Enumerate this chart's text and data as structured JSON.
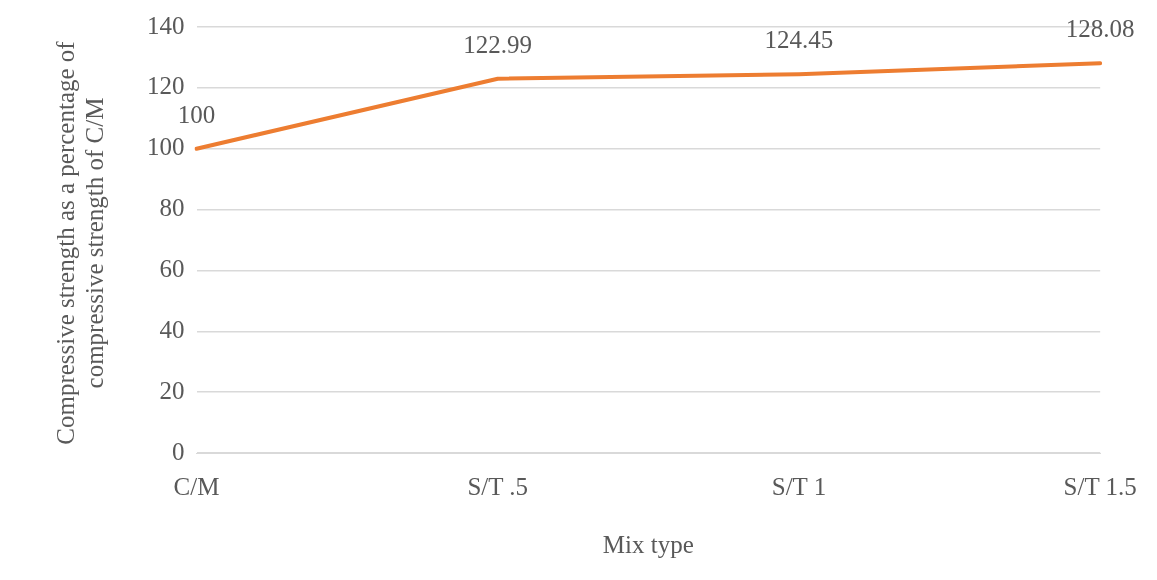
{
  "chart_data": {
    "type": "line",
    "xlabel": "Mix type",
    "ylabel": "Compressive strength as a percentage of compressive strength of C/M",
    "categories": [
      "C/M",
      "S/T .5",
      "S/T 1",
      "S/T 1.5"
    ],
    "series": [
      {
        "color": "#ed7d31",
        "values": [
          100,
          122.99,
          124.45,
          128.08
        ]
      }
    ],
    "ylim": [
      0,
      140
    ],
    "yticks": [
      0,
      20,
      40,
      60,
      80,
      100,
      120,
      140
    ],
    "grid": "y",
    "legend": false,
    "marker": "none",
    "line_style": "solid",
    "data_labels": true
  }
}
